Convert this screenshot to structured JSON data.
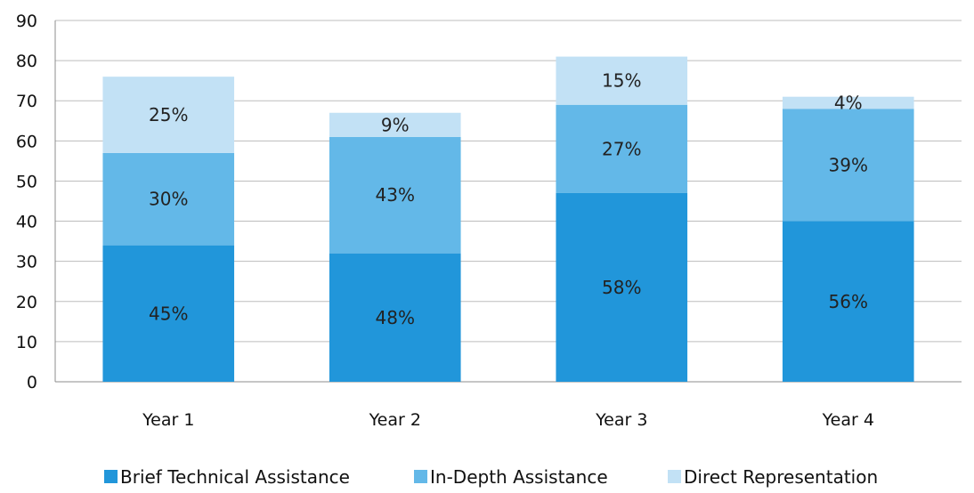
{
  "chart_data": {
    "type": "bar",
    "stacked": true,
    "title": "",
    "xlabel": "",
    "ylabel": "",
    "categories": [
      "Year 1",
      "Year 2",
      "Year 3",
      "Year 4"
    ],
    "ylim": [
      0,
      90
    ],
    "yticks": [
      0,
      10,
      20,
      30,
      40,
      50,
      60,
      70,
      80,
      90
    ],
    "grid": true,
    "legend_position": "bottom",
    "series": [
      {
        "name": "Brief Technical Assistance",
        "color": "#2196DA",
        "values": [
          34,
          32,
          47,
          40
        ],
        "labels": [
          "45%",
          "48%",
          "58%",
          "56%"
        ]
      },
      {
        "name": "In-Depth Assistance",
        "color": "#63B8E8",
        "values": [
          23,
          29,
          22,
          28
        ],
        "labels": [
          "30%",
          "43%",
          "27%",
          "39%"
        ]
      },
      {
        "name": "Direct Representation",
        "color": "#C2E1F5",
        "values": [
          19,
          6,
          12,
          3
        ],
        "labels": [
          "25%",
          "9%",
          "15%",
          "4%"
        ]
      }
    ]
  }
}
